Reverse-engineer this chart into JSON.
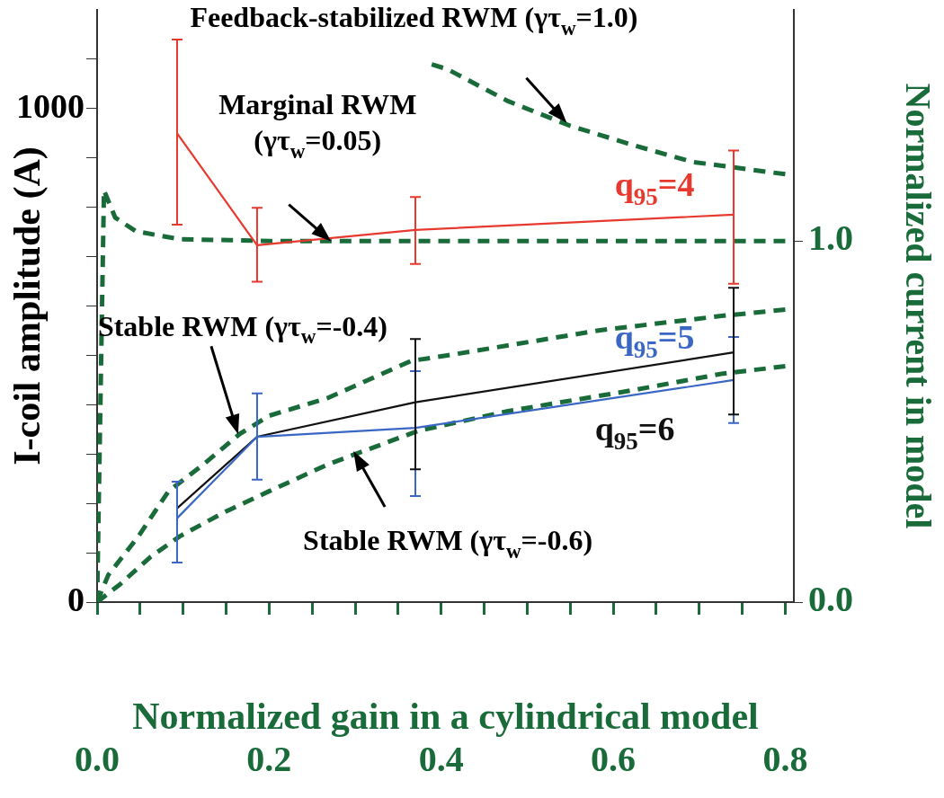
{
  "chart_data": {
    "type": "line",
    "xlabel": "Normalized gain in a cylindrical model",
    "ylabel": "I-coil amplitude (A)",
    "y2label": "Normalized current in model",
    "x": [
      0.093,
      0.186,
      0.37,
      0.74
    ],
    "xlim": [
      0,
      0.81
    ],
    "xticks": [
      {
        "value": 0,
        "label": "0.0"
      },
      {
        "value": 0.05,
        "label": null
      },
      {
        "value": 0.1,
        "label": null
      },
      {
        "value": 0.15,
        "label": null
      },
      {
        "value": 0.2,
        "label": "0.2"
      },
      {
        "value": 0.25,
        "label": null
      },
      {
        "value": 0.3,
        "label": null
      },
      {
        "value": 0.35,
        "label": null
      },
      {
        "value": 0.4,
        "label": "0.4"
      },
      {
        "value": 0.45,
        "label": null
      },
      {
        "value": 0.5,
        "label": null
      },
      {
        "value": 0.55,
        "label": null
      },
      {
        "value": 0.6,
        "label": "0.6"
      },
      {
        "value": 0.65,
        "label": null
      },
      {
        "value": 0.7,
        "label": null
      },
      {
        "value": 0.75,
        "label": null
      },
      {
        "value": 0.8,
        "label": "0.8"
      }
    ],
    "ylim": [
      0,
      1200
    ],
    "yticks": [
      0,
      {
        "value": 100,
        "label": null
      },
      {
        "value": 200,
        "label": null
      },
      {
        "value": 300,
        "label": null
      },
      {
        "value": 400,
        "label": null
      },
      {
        "value": 500,
        "label": null
      },
      {
        "value": 600,
        "label": null
      },
      {
        "value": 700,
        "label": null
      },
      {
        "value": 800,
        "label": null
      },
      {
        "value": 900,
        "label": null
      },
      1000,
      {
        "value": 1100,
        "label": null
      }
    ],
    "y2lim": [
      0,
      1.64
    ],
    "y2ticks": [
      {
        "value": 0,
        "label": "0.0"
      },
      {
        "value": 1,
        "label": "1.0"
      }
    ],
    "grid": false,
    "marker": "none",
    "series": [
      {
        "name": "q$_{95}$=4",
        "color": "#e8392f",
        "values": [
          950,
          723,
          754,
          785
        ],
        "errors": [
          [
            765,
            1140
          ],
          [
            649,
            799
          ],
          [
            685,
            821
          ],
          [
            645,
            915
          ]
        ]
      },
      {
        "name": "q$_{95}$=5",
        "color": "#3a66c4",
        "values": [
          170,
          335,
          353,
          450
        ],
        "errors": [
          [
            80,
            244
          ],
          [
            248,
            423
          ],
          [
            215,
            468
          ],
          [
            363,
            537
          ]
        ]
      },
      {
        "name": "q$_{95}$=6",
        "color": "#111111",
        "values": [
          190,
          335,
          405,
          506
        ],
        "errors": [
          null,
          null,
          [
            269,
            533
          ],
          [
            380,
            637
          ]
        ]
      },
      {
        "color": "#1a6b3a",
        "axis": "y2",
        "line_style": "dashed",
        "x": [
          0.389,
          0.407,
          0.478,
          0.55,
          0.621,
          0.692,
          0.8
        ],
        "values": [
          1.489,
          1.476,
          1.387,
          1.319,
          1.267,
          1.219,
          1.185
        ]
      },
      {
        "color": "#1a6b3a",
        "axis": "y2",
        "line_style": "dashed",
        "x": [
          0,
          0.008,
          0.021,
          0.045,
          0.096,
          0.2,
          0.4,
          0.6,
          0.8
        ],
        "values": [
          0,
          1.14,
          1.065,
          1.027,
          1.005,
          1.0,
          1.0,
          1.0,
          1.0
        ]
      },
      {
        "color": "#1a6b3a",
        "axis": "y2",
        "line_style": "dashed",
        "x": [
          0,
          0.013,
          0.048,
          0.083,
          0.124,
          0.166,
          0.2,
          0.269,
          0.365,
          0.407,
          0.585,
          0.728,
          0.8
        ],
        "values": [
          0,
          0.075,
          0.182,
          0.307,
          0.382,
          0.466,
          0.516,
          0.566,
          0.668,
          0.683,
          0.753,
          0.793,
          0.81
        ]
      },
      {
        "color": "#1a6b3a",
        "axis": "y2",
        "line_style": "dashed",
        "x": [
          0,
          0.027,
          0.062,
          0.096,
          0.148,
          0.2,
          0.269,
          0.373,
          0.478,
          0.621,
          0.728,
          0.8
        ],
        "values": [
          0,
          0.05,
          0.125,
          0.182,
          0.249,
          0.307,
          0.382,
          0.474,
          0.529,
          0.586,
          0.633,
          0.653
        ]
      }
    ],
    "annotations": [
      {
        "text": "Feedback-stabilized RWM (γτ$_{w}$=1.0)",
        "x": 0.546,
        "y": 971
      },
      {
        "text": "Marginal RWM\n(γτ$_{w}$=0.05)",
        "x": 0.272,
        "y": 731
      },
      {
        "text": "Stable RWM (γτ$_{w}$=-0.4)",
        "x": 0.164,
        "y": 340
      },
      {
        "text": "Stable RWM (γτ$_{w}$=-0.6)",
        "x": 0.298,
        "y": 306
      }
    ]
  }
}
